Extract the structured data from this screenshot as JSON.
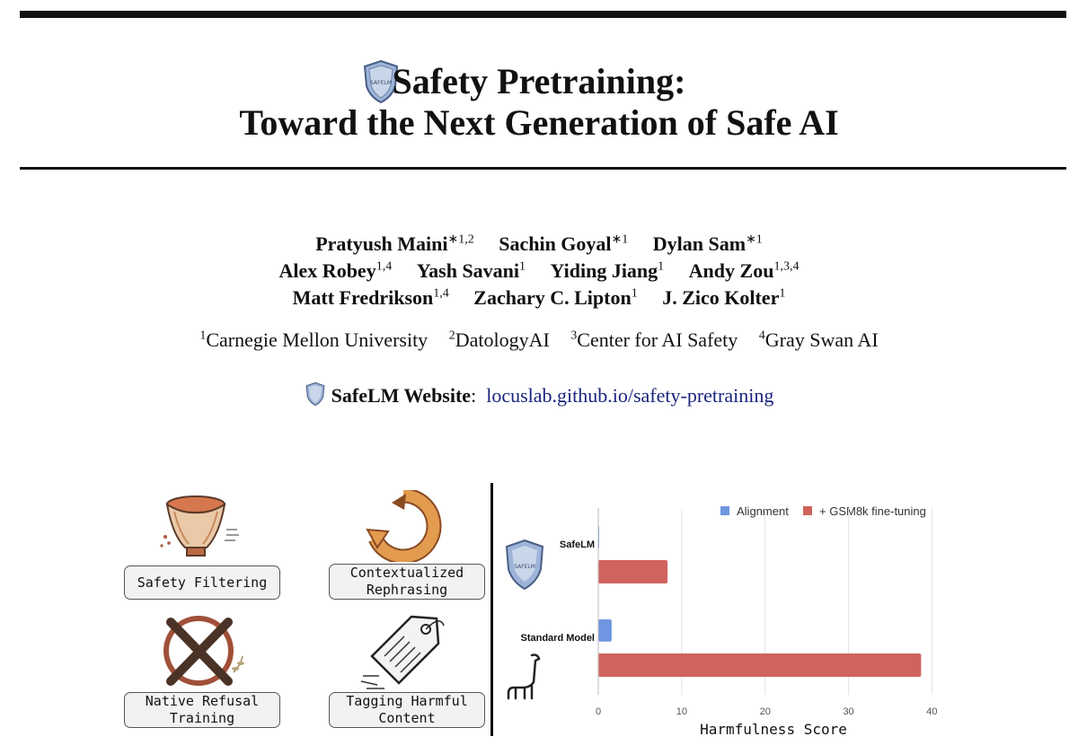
{
  "paper": {
    "title_line1": "Safety Pretraining:",
    "title_line2": "Toward the Next Generation of Safe AI",
    "authors": [
      [
        {
          "name": "Pratyush Maini",
          "sup": "∗1,2"
        },
        {
          "name": "Sachin Goyal",
          "sup": "∗1"
        },
        {
          "name": "Dylan Sam",
          "sup": "∗1"
        }
      ],
      [
        {
          "name": "Alex Robey",
          "sup": "1,4"
        },
        {
          "name": "Yash Savani",
          "sup": "1"
        },
        {
          "name": "Yiding Jiang",
          "sup": "1"
        },
        {
          "name": "Andy Zou",
          "sup": "1,3,4"
        }
      ],
      [
        {
          "name": "Matt Fredrikson",
          "sup": "1,4"
        },
        {
          "name": "Zachary C. Lipton",
          "sup": "1"
        },
        {
          "name": "J. Zico Kolter",
          "sup": "1"
        }
      ]
    ],
    "affiliations": [
      {
        "sup": "1",
        "name": "Carnegie Mellon University"
      },
      {
        "sup": "2",
        "name": "DatologyAI"
      },
      {
        "sup": "3",
        "name": "Center for AI Safety"
      },
      {
        "sup": "4",
        "name": "Gray Swan AI"
      }
    ],
    "website_label": "SafeLM Website",
    "website_sep": ":",
    "website_url": "locuslab.github.io/safety-pretraining"
  },
  "methods": [
    {
      "label_line1": "Safety Filtering",
      "label_line2": "",
      "icon": "filter-funnel-icon"
    },
    {
      "label_line1": "Contextualized",
      "label_line2": "Rephrasing",
      "icon": "rephrase-cycle-icon"
    },
    {
      "label_line1": "Native Refusal",
      "label_line2": "Training",
      "icon": "refusal-x-icon"
    },
    {
      "label_line1": "Tagging Harmful",
      "label_line2": "Content",
      "icon": "price-tag-icon"
    }
  ],
  "logo_text": "SAFELM",
  "colors": {
    "alignment": "#6f96e0",
    "gsm8k": "#d0635d",
    "link": "#1a237e"
  },
  "chart_data": {
    "type": "bar",
    "orientation": "horizontal",
    "title": "",
    "categories": [
      "SafeLM",
      "Standard Model"
    ],
    "series": [
      {
        "name": "Alignment",
        "values": [
          0.1,
          1.6
        ]
      },
      {
        "name": "+ GSM8k fine-tuning",
        "values": [
          8.3,
          38.7
        ]
      }
    ],
    "xlabel": "Harmfulness Score",
    "ylabel": "",
    "xlim": [
      0,
      42
    ],
    "xticks": [
      0,
      10,
      20,
      30,
      40
    ],
    "grid": true,
    "legend": "top"
  }
}
